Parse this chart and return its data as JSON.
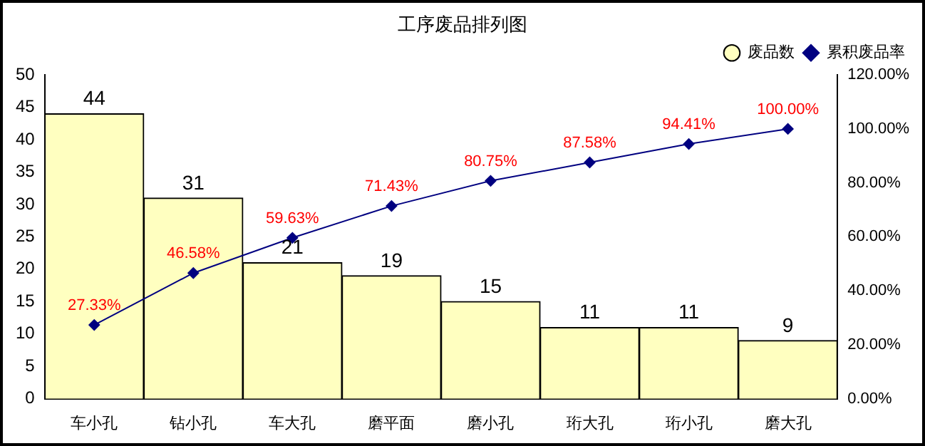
{
  "chart_data": {
    "type": "bar",
    "title": "工序废品排列图",
    "categories": [
      "车小孔",
      "钻小孔",
      "车大孔",
      "磨平面",
      "磨小孔",
      "珩大孔",
      "珩小孔",
      "磨大孔"
    ],
    "series": [
      {
        "name": "废品数",
        "color": "#ffffc0",
        "values": [
          44,
          31,
          21,
          19,
          15,
          11,
          11,
          9
        ],
        "value_labels": [
          "44",
          "31",
          "21",
          "19",
          "15",
          "11",
          "11",
          "9"
        ]
      },
      {
        "name": "累积废品率",
        "type": "line",
        "axis": "y2",
        "color": "#000080",
        "values": [
          27.33,
          46.58,
          59.63,
          71.43,
          80.75,
          87.58,
          94.41,
          100.0
        ],
        "value_labels": [
          "27.33%",
          "46.58%",
          "59.63%",
          "71.43%",
          "80.75%",
          "87.58%",
          "94.41%",
          "100.00%"
        ]
      }
    ],
    "ylim": [
      0,
      50
    ],
    "yticks": [
      0,
      5,
      10,
      15,
      20,
      25,
      30,
      35,
      40,
      45,
      50
    ],
    "y2lim": [
      0,
      120
    ],
    "y2ticks": [
      {
        "value": 0,
        "label": "0.00%"
      },
      {
        "value": 20,
        "label": "20.00%"
      },
      {
        "value": 40,
        "label": "40.00%"
      },
      {
        "value": 60,
        "label": "60.00%"
      },
      {
        "value": 80,
        "label": "80.00%"
      },
      {
        "value": 100,
        "label": "100.00%"
      },
      {
        "value": 120,
        "label": "120.00%"
      }
    ],
    "grid": false,
    "legend": "top right",
    "marker": "diamond",
    "line_style": "solid"
  }
}
